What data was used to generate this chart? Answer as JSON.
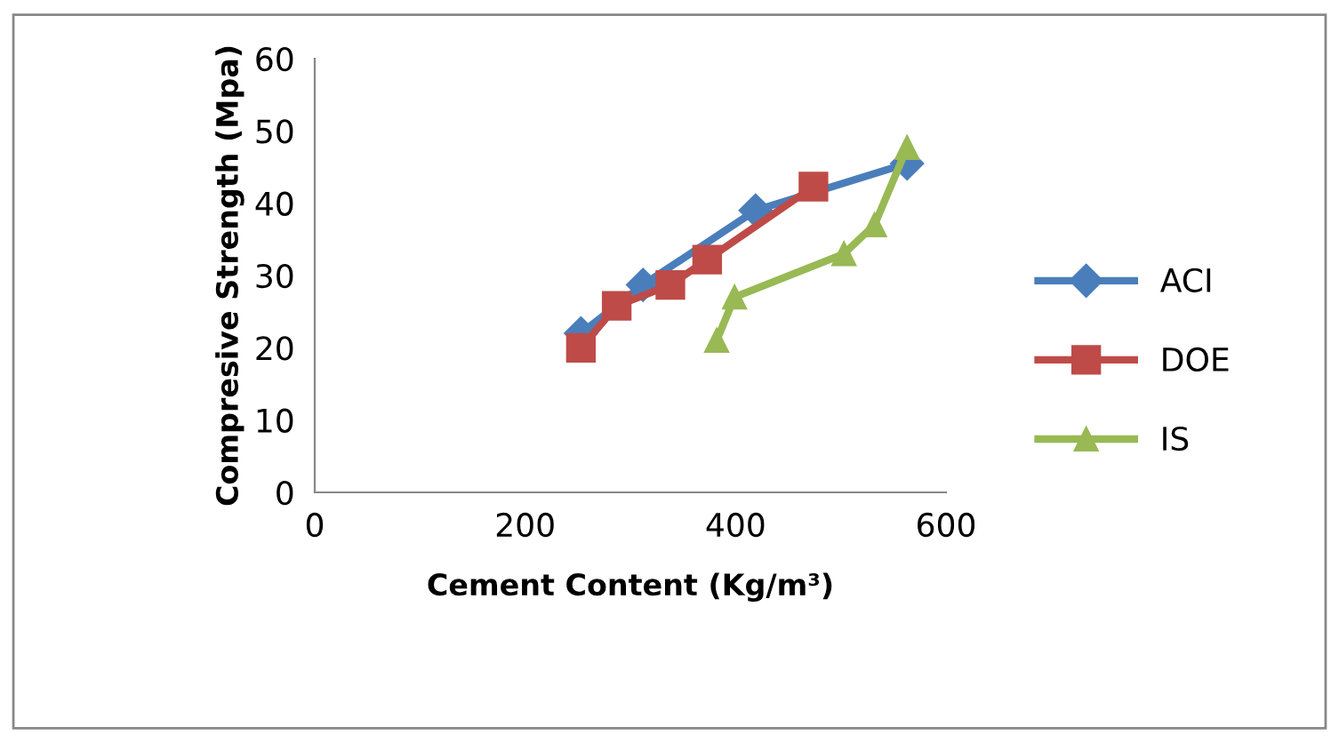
{
  "chart_data": {
    "type": "line",
    "xlabel": "Cement Content (Kg/m³)",
    "ylabel": "Compresive Strength (Mpa)",
    "xlim": [
      0,
      600
    ],
    "xticks": [
      0,
      200,
      400,
      600
    ],
    "ylim": [
      0,
      60
    ],
    "yticks": [
      0,
      10,
      20,
      30,
      40,
      50,
      60
    ],
    "grid": false,
    "legend": "right",
    "series": [
      {
        "name": "ACI",
        "color": "#4a7ebb",
        "marker": "diamond",
        "x": [
          253,
          312,
          419,
          563
        ],
        "values": [
          22,
          28.7,
          39,
          45.5
        ]
      },
      {
        "name": "DOE",
        "color": "#be4b48",
        "marker": "square",
        "x": [
          253,
          287,
          338,
          373,
          474
        ],
        "values": [
          20,
          25.8,
          28.7,
          32.2,
          42.3
        ]
      },
      {
        "name": "IS",
        "color": "#98b954",
        "marker": "triangle",
        "x": [
          382,
          399,
          503,
          532,
          563
        ],
        "values": [
          21,
          27,
          33,
          37,
          47.7
        ]
      }
    ]
  }
}
